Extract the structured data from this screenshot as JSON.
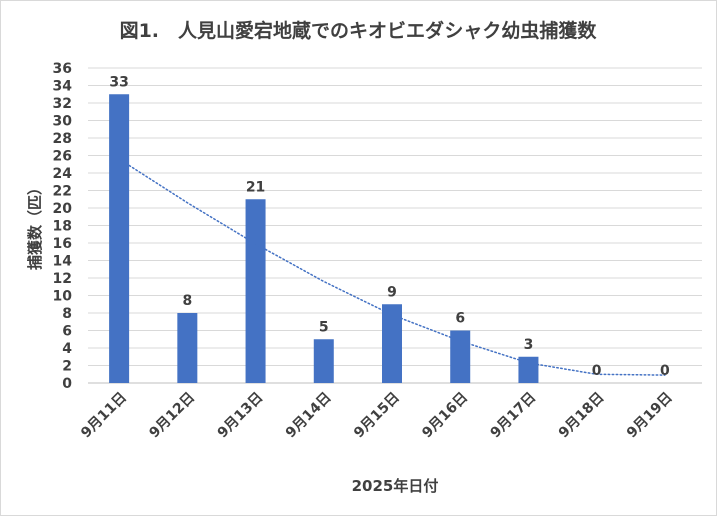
{
  "chart_data": {
    "type": "bar",
    "title": "図1.　人見山愛宕地蔵でのキオビエダシャク幼虫捕獲数",
    "xlabel": "2025年日付",
    "ylabel": "捕獲数（匹）",
    "categories": [
      "9月11日",
      "9月12日",
      "9月13日",
      "9月14日",
      "9月15日",
      "9月16日",
      "9月17日",
      "9月18日",
      "9月19日"
    ],
    "values": [
      33,
      8,
      21,
      5,
      9,
      6,
      3,
      0,
      0
    ],
    "ylim": [
      0,
      36
    ],
    "ytick_step": 2,
    "grid": true,
    "legend": "none",
    "trendline": {
      "type": "polynomial",
      "style": "dotted",
      "values": [
        25.6,
        20.6,
        15.9,
        11.6,
        7.8,
        4.8,
        2.3,
        1.0,
        0.9
      ]
    },
    "colors": {
      "bar": "#4472c4",
      "trendline": "#4472c4",
      "text": "#404040",
      "grid": "#d9d9d9"
    }
  }
}
